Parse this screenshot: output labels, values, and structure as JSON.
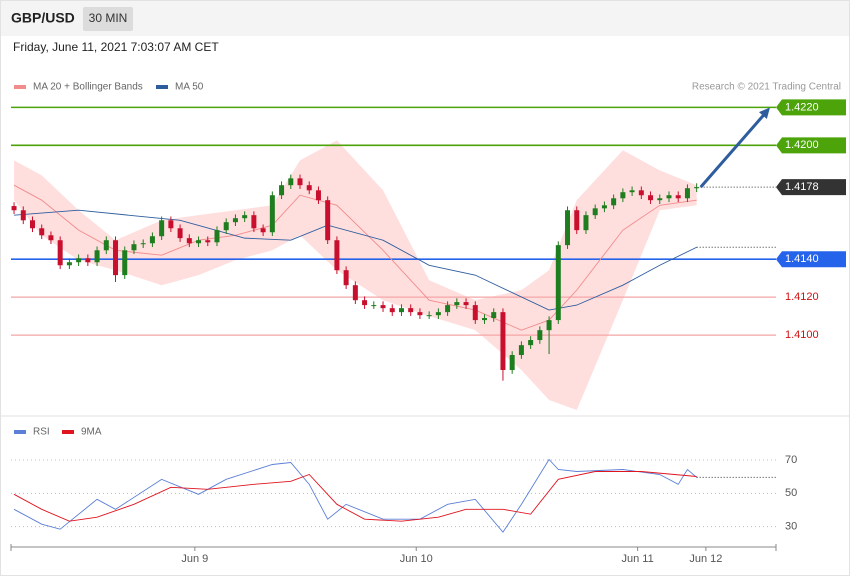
{
  "header": {
    "symbol": "GBP/USD",
    "interval": "30 MIN",
    "timestamp": "Friday, June 11, 2021 7:03:07 AM CET",
    "credit": "Research © 2021 Trading Central"
  },
  "chart_data": [
    {
      "type": "candlestick",
      "up_color": "#1e7d1e",
      "down_color": "#c8102e",
      "open": [
        1.4168,
        1.41658,
        1.41605,
        1.41563,
        1.41526,
        1.415,
        1.41368,
        1.41384,
        1.41405,
        1.41384,
        1.41447,
        1.415,
        1.41316,
        1.41447,
        1.41479,
        1.41484,
        1.41521,
        1.41605,
        1.41563,
        1.41511,
        1.41484,
        1.415,
        1.41489,
        1.41553,
        1.41595,
        1.41616,
        1.41632,
        1.41563,
        1.41542,
        1.41737,
        1.4179,
        1.41826,
        1.4179,
        1.41763,
        1.41711,
        1.415,
        1.41342,
        1.41263,
        1.41184,
        1.41158,
        1.41158,
        1.41142,
        1.41121,
        1.41142,
        1.41121,
        1.41105,
        1.41105,
        1.41121,
        1.41158,
        1.41174,
        1.41158,
        1.41079,
        1.4109,
        1.41121,
        1.40816,
        1.40895,
        1.40947,
        1.40974,
        1.41026,
        1.41079,
        1.41474,
        1.41658,
        1.41553,
        1.41632,
        1.41668,
        1.41684,
        1.41721,
        1.41753,
        1.41763,
        1.41737,
        1.41711,
        1.41721,
        1.41737,
        1.41721,
        1.41774
      ],
      "high": [
        1.417,
        1.41678,
        1.41625,
        1.41583,
        1.41546,
        1.4152,
        1.41404,
        1.41425,
        1.41425,
        1.41467,
        1.4152,
        1.4152,
        1.41467,
        1.41499,
        1.41504,
        1.41541,
        1.41625,
        1.41625,
        1.41583,
        1.41531,
        1.4152,
        1.4152,
        1.41573,
        1.41615,
        1.41636,
        1.41652,
        1.41652,
        1.41583,
        1.41757,
        1.4181,
        1.41846,
        1.41846,
        1.4181,
        1.41783,
        1.41731,
        1.4152,
        1.41362,
        1.41283,
        1.41204,
        1.41178,
        1.41178,
        1.41162,
        1.41162,
        1.41162,
        1.41141,
        1.41125,
        1.41141,
        1.41178,
        1.41194,
        1.41194,
        1.41178,
        1.4111,
        1.41141,
        1.41141,
        1.40915,
        1.40967,
        1.40994,
        1.41046,
        1.41099,
        1.41494,
        1.41678,
        1.41678,
        1.41652,
        1.41688,
        1.41704,
        1.41741,
        1.41773,
        1.41783,
        1.41783,
        1.41757,
        1.41741,
        1.41757,
        1.41757,
        1.41794,
        1.418
      ],
      "low": [
        1.41638,
        1.41585,
        1.41543,
        1.41506,
        1.4148,
        1.41348,
        1.41348,
        1.41364,
        1.41364,
        1.41364,
        1.41427,
        1.4128,
        1.41296,
        1.41427,
        1.41459,
        1.41464,
        1.41501,
        1.41543,
        1.41491,
        1.41464,
        1.41464,
        1.41469,
        1.41469,
        1.41533,
        1.41575,
        1.41596,
        1.41543,
        1.41522,
        1.41522,
        1.41717,
        1.4177,
        1.4177,
        1.41743,
        1.41691,
        1.4148,
        1.41322,
        1.41243,
        1.41164,
        1.41138,
        1.41138,
        1.41122,
        1.41101,
        1.41101,
        1.41101,
        1.41085,
        1.41085,
        1.41085,
        1.41101,
        1.41138,
        1.41138,
        1.41059,
        1.41059,
        1.4107,
        1.4076,
        1.40796,
        1.40875,
        1.40927,
        1.40954,
        1.409,
        1.41059,
        1.41454,
        1.41533,
        1.41533,
        1.41612,
        1.41648,
        1.41664,
        1.41701,
        1.41733,
        1.41717,
        1.41691,
        1.41691,
        1.41701,
        1.41701,
        1.41701,
        1.41754
      ],
      "close": [
        1.41658,
        1.41605,
        1.41563,
        1.41526,
        1.415,
        1.41368,
        1.41384,
        1.41405,
        1.41384,
        1.41447,
        1.415,
        1.41316,
        1.41447,
        1.41479,
        1.41484,
        1.41521,
        1.41605,
        1.41563,
        1.41511,
        1.41484,
        1.415,
        1.41489,
        1.41553,
        1.41595,
        1.41616,
        1.41632,
        1.41563,
        1.41542,
        1.41737,
        1.4179,
        1.41826,
        1.4179,
        1.41763,
        1.41711,
        1.415,
        1.41342,
        1.41263,
        1.41184,
        1.41158,
        1.41158,
        1.41142,
        1.41121,
        1.41142,
        1.41121,
        1.41105,
        1.41105,
        1.41121,
        1.41158,
        1.41174,
        1.41158,
        1.41079,
        1.4109,
        1.41121,
        1.40816,
        1.40895,
        1.40947,
        1.40974,
        1.41026,
        1.41079,
        1.41474,
        1.41658,
        1.41553,
        1.41632,
        1.41668,
        1.41684,
        1.41721,
        1.41753,
        1.41763,
        1.41737,
        1.41711,
        1.41721,
        1.41737,
        1.41721,
        1.41774,
        1.4178
      ],
      "series": [
        {
          "name": "MA 20 + Bollinger Bands",
          "color": "#f28b8b",
          "band_color": "#ffdede",
          "x": [
            0,
            3,
            7,
            11,
            16,
            20,
            24,
            28,
            31,
            35,
            40,
            45,
            50,
            55,
            58,
            61,
            66,
            70,
            74
          ],
          "values": [
            1.4179,
            1.41711,
            1.41553,
            1.41447,
            1.41421,
            1.415,
            1.41526,
            1.41579,
            1.41737,
            1.41684,
            1.41447,
            1.41184,
            1.41132,
            1.41026,
            1.41079,
            1.41237,
            1.41553,
            1.41684,
            1.41711
          ],
          "upper": [
            1.41921,
            1.41842,
            1.41658,
            1.415,
            1.41605,
            1.41632,
            1.41658,
            1.41684,
            1.41921,
            1.42026,
            1.41763,
            1.41289,
            1.41184,
            1.41237,
            1.41342,
            1.41711,
            1.41974,
            1.41868,
            1.4179
          ],
          "lower": [
            1.41711,
            1.41526,
            1.41395,
            1.41342,
            1.41263,
            1.41316,
            1.41395,
            1.41447,
            1.41526,
            1.41342,
            1.41184,
            1.411,
            1.41026,
            1.40816,
            1.40658,
            1.40605,
            1.41184,
            1.41658,
            1.41684
          ]
        },
        {
          "name": "MA 50",
          "color": "#2e5d9e",
          "x": [
            0,
            7,
            18,
            25,
            30,
            34,
            40,
            45,
            50,
            58,
            61,
            66,
            70,
            74
          ],
          "values": [
            1.41632,
            1.41658,
            1.41605,
            1.41511,
            1.415,
            1.41579,
            1.415,
            1.41368,
            1.41316,
            1.41132,
            1.41158,
            1.41263,
            1.41368,
            1.41463
          ]
        }
      ],
      "levels": [
        {
          "value": 1.422,
          "label": "1.4220",
          "color": "#4ca30a",
          "style": "boxed"
        },
        {
          "value": 1.42,
          "label": "1.4200",
          "color": "#4ca30a",
          "style": "boxed"
        },
        {
          "value": 1.4178,
          "label": "1.4178",
          "color": "#333333",
          "style": "current"
        },
        {
          "value": 1.414,
          "label": "1.4140",
          "color": "#2563eb",
          "style": "boxed"
        },
        {
          "value": 1.412,
          "label": "1.4120",
          "color": "#f4a5a5",
          "style": "text"
        },
        {
          "value": 1.41,
          "label": "1.4100",
          "color": "#f4a5a5",
          "style": "text"
        }
      ],
      "xlim": [
        -0.33,
        82.6
      ],
      "ylim": [
        1.406,
        1.4226
      ]
    },
    {
      "type": "line",
      "series": [
        {
          "name": "RSI",
          "color": "#5b7fd6",
          "x": [
            0,
            3,
            5,
            9,
            11,
            16,
            20,
            23,
            28,
            30,
            32,
            34,
            36,
            40,
            44,
            47,
            50,
            53,
            55,
            58,
            59,
            61,
            66,
            70,
            72,
            73,
            74
          ],
          "values": [
            40.4,
            31.5,
            28.5,
            46.4,
            40.4,
            58.4,
            49.4,
            58.4,
            67.3,
            68.5,
            55.4,
            34.5,
            43.4,
            34.5,
            34.5,
            43.4,
            46.4,
            26.7,
            43.4,
            70.3,
            64.3,
            63.1,
            64.3,
            61.3,
            55.4,
            64.3,
            59.6
          ]
        },
        {
          "name": "9MA",
          "color": "#e0141e",
          "x": [
            0,
            3,
            6,
            9,
            13,
            17,
            21,
            26,
            30,
            32,
            35,
            38,
            42,
            46,
            49,
            53,
            56,
            59,
            63,
            68,
            74
          ],
          "values": [
            49.4,
            40.4,
            33.3,
            35.7,
            43.4,
            53.6,
            52.4,
            55.4,
            57.2,
            61.3,
            43.4,
            34.5,
            33.3,
            35.7,
            40.4,
            40.4,
            37.5,
            58.4,
            63.1,
            63.1,
            60.1
          ]
        }
      ],
      "xlim": [
        -0.33,
        82.6
      ],
      "xticks": [
        {
          "value": 19.6,
          "label": "Jun 9"
        },
        {
          "value": 43.6,
          "label": "Jun 10"
        },
        {
          "value": 67.6,
          "label": "Jun 11"
        },
        {
          "value": 75,
          "label": "Jun 12"
        }
      ],
      "ylim": [
        19,
        79
      ],
      "yticks": [
        30,
        50,
        70
      ],
      "grid": true
    }
  ]
}
